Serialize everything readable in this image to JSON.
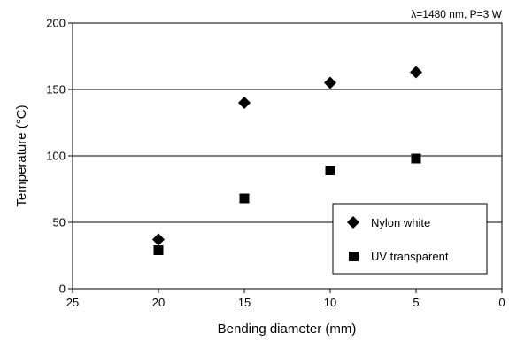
{
  "chart_data": {
    "type": "scatter",
    "annotation": "λ=1480 nm, P=3 W",
    "xlabel": "Bending diameter (mm)",
    "ylabel": "Temperature (°C)",
    "xlim": [
      25,
      0
    ],
    "ylim": [
      0,
      200
    ],
    "x_reversed": true,
    "x_ticks": [
      25,
      20,
      15,
      10,
      5,
      0
    ],
    "y_ticks": [
      0,
      50,
      100,
      150,
      200
    ],
    "gridlines": "horizontal",
    "legend_position": "bottom-right",
    "series": [
      {
        "name": "Nylon white",
        "marker": "diamond",
        "color": "#000000",
        "points": [
          {
            "x": 20,
            "y": 37
          },
          {
            "x": 15,
            "y": 140
          },
          {
            "x": 10,
            "y": 155
          },
          {
            "x": 5,
            "y": 163
          }
        ]
      },
      {
        "name": "UV transparent",
        "marker": "square",
        "color": "#000000",
        "points": [
          {
            "x": 20,
            "y": 29
          },
          {
            "x": 15,
            "y": 68
          },
          {
            "x": 10,
            "y": 89
          },
          {
            "x": 5,
            "y": 98
          }
        ]
      }
    ]
  }
}
